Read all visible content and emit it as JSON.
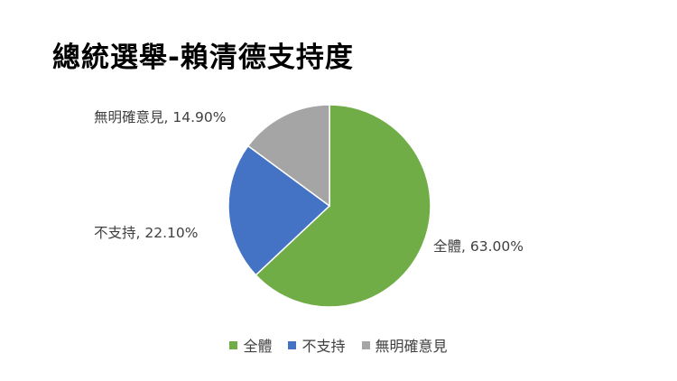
{
  "chart_data": {
    "type": "pie",
    "title": "總統選舉-賴清德支持度",
    "categories": [
      "全體",
      "不支持",
      "無明確意見"
    ],
    "values": [
      63.0,
      22.1,
      14.9
    ],
    "data_labels": [
      "全體, 63.00%",
      "不支持, 22.10%",
      "無明確意見, 14.90%"
    ],
    "colors": [
      "#70AD47",
      "#4472C4",
      "#A5A5A5"
    ],
    "legend_position": "bottom"
  }
}
